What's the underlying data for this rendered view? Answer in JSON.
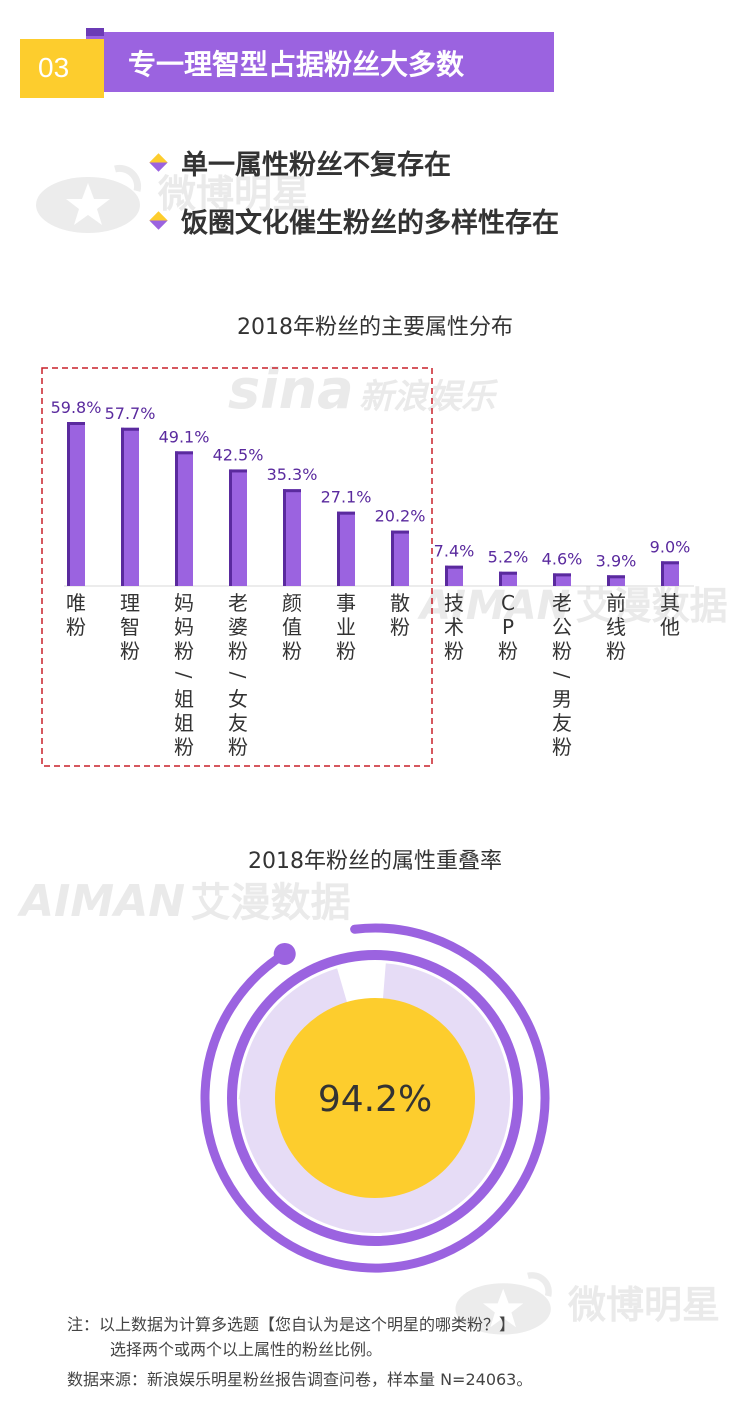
{
  "header": {
    "number": "03",
    "title": "专一理智型占据粉丝大多数"
  },
  "bullets": [
    "单一属性粉丝不复存在",
    "饭圈文化催生粉丝的多样性存在"
  ],
  "watermarks": {
    "weibo": "微博明星",
    "sina": "sina",
    "sina_text": "新浪娱乐",
    "aiman": "AIMAN",
    "aiman_text": "艾漫数据"
  },
  "colors": {
    "accent": "#9b63e0",
    "bar": "#9b63e0",
    "bar_dark": "#5a2a9e",
    "yellow": "#fdcd2d",
    "ring_light": "#e6dcf6",
    "dashed": "#c8202a"
  },
  "chart_data": [
    {
      "type": "bar",
      "title": "2018年粉丝的主要属性分布",
      "categories": [
        "唯粉",
        "理智粉",
        "妈妈粉/姐姐粉",
        "老婆粉/女友粉",
        "颜值粉",
        "事业粉",
        "散粉",
        "技术粉",
        "CP粉",
        "老公粉/男友粉",
        "前线粉",
        "其他"
      ],
      "values": [
        59.8,
        57.7,
        49.1,
        42.5,
        35.3,
        27.1,
        20.2,
        7.4,
        5.2,
        4.6,
        3.9,
        9.0
      ],
      "value_labels": [
        "59.8%",
        "57.7%",
        "49.1%",
        "42.5%",
        "35.3%",
        "27.1%",
        "20.2%",
        "7.4%",
        "5.2%",
        "4.6%",
        "3.9%",
        "9.0%"
      ],
      "ylim": [
        0,
        59.8
      ],
      "highlight_first_n": 7
    },
    {
      "type": "pie",
      "title": "2018年粉丝的属性重叠率",
      "value": 94.2,
      "value_label": "94.2%"
    }
  ],
  "notes": {
    "line1": "注：以上数据为计算多选题【您自认为是这个明星的哪类粉？】",
    "line2": "选择两个或两个以上属性的粉丝比例。",
    "source": "数据来源：新浪娱乐明星粉丝报告调查问卷，样本量 N=24063。"
  }
}
